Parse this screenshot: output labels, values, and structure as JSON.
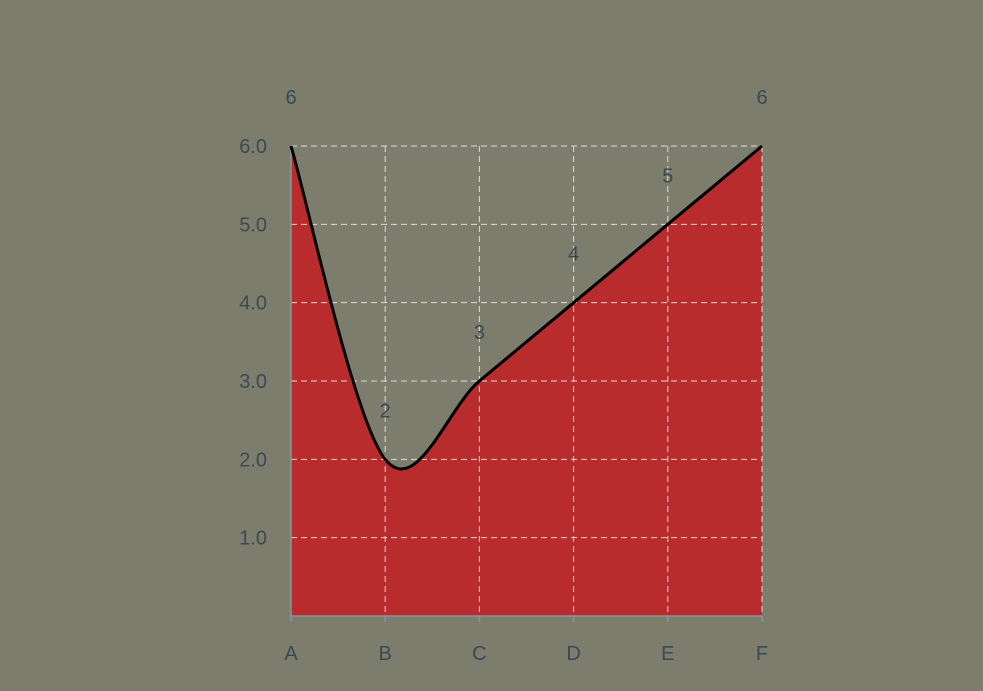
{
  "background": "#7d7d6e",
  "chart_data": {
    "type": "area",
    "categories": [
      "A",
      "B",
      "C",
      "D",
      "E",
      "F"
    ],
    "values": [
      6,
      2,
      3,
      4,
      5,
      6
    ],
    "data_labels": [
      "6",
      "2",
      "3",
      "4",
      "5",
      "6"
    ],
    "y_ticks": [
      "1.0",
      "2.0",
      "3.0",
      "4.0",
      "5.0",
      "6.0"
    ],
    "ylim": [
      0,
      6
    ],
    "grid": true,
    "legend": "none",
    "title": "",
    "xlabel": "",
    "ylabel": "",
    "colors": {
      "fill": "#b92c2e",
      "line": "#000000",
      "grid": "#e6e6e6",
      "text": "#3a4a52",
      "axis": "#8a9499"
    }
  }
}
